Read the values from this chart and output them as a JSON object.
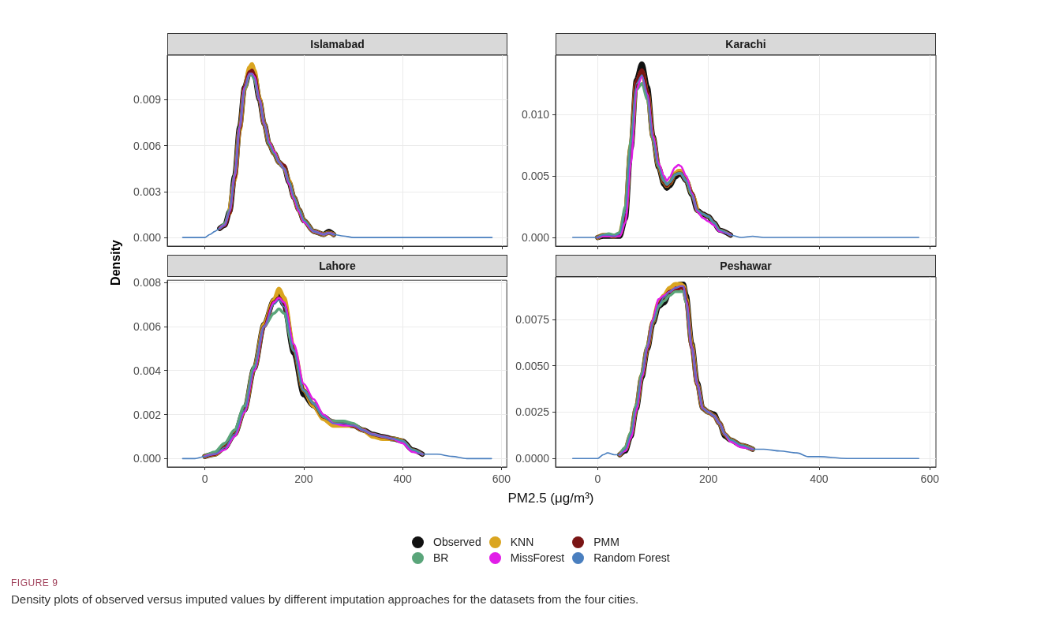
{
  "chart_data": [
    {
      "type": "line",
      "title": "Islamabad",
      "ylabel": "Density",
      "annotations": [
        "FIGURE 9",
        "Density plots of observed versus imputed values by different imputation approaches for the datasets from the four cities."
      ],
      "legend": "bottom",
      "grid": true,
      "marker": "none",
      "line_style": "solid",
      "tick_labels": "y",
      "xlim": [
        -76,
        611
      ],
      "xticks": [
        0,
        200,
        400,
        600
      ],
      "ylim": [
        -0.00056,
        0.0119
      ],
      "yticks": [
        {
          "value": 0,
          "label": "0.000"
        },
        0.003,
        0.006,
        0.009
      ],
      "x": [
        -45,
        -20,
        0,
        10,
        20,
        30,
        40,
        50,
        60,
        70,
        80,
        90,
        95,
        100,
        110,
        120,
        130,
        140,
        150,
        160,
        170,
        180,
        190,
        200,
        220,
        240,
        250,
        260,
        280,
        300,
        350,
        400,
        500,
        580
      ],
      "series": [
        {
          "name": "Observed",
          "color": "#111111",
          "values": [
            null,
            null,
            null,
            null,
            null,
            0.0006,
            0.0008,
            0.0017,
            0.004,
            0.0072,
            0.0098,
            0.0108,
            0.0109,
            0.0106,
            0.009,
            0.0074,
            0.0061,
            0.0055,
            0.0049,
            0.0046,
            0.0036,
            0.0026,
            0.0018,
            0.0011,
            0.0004,
            0.0002,
            0.0004,
            0.0002,
            null,
            null,
            null,
            null,
            null,
            null
          ]
        },
        {
          "name": "KNN",
          "color": "#daa520",
          "values": [
            null,
            null,
            null,
            null,
            null,
            null,
            null,
            0.0016,
            0.0038,
            0.007,
            0.0097,
            0.0111,
            0.0113,
            0.0109,
            0.0091,
            0.0074,
            0.0061,
            0.0055,
            0.0049,
            0.0046,
            0.0037,
            0.0026,
            0.0018,
            0.0011,
            0.0004,
            0.0002,
            0.0003,
            0.0002,
            null,
            null,
            null,
            null,
            null,
            null
          ]
        },
        {
          "name": "PMM",
          "color": "#7a1515",
          "values": [
            null,
            null,
            null,
            null,
            null,
            0.0006,
            0.0008,
            0.0016,
            0.0039,
            0.0071,
            0.0098,
            0.0108,
            0.0109,
            0.0106,
            0.009,
            0.0074,
            0.0061,
            0.0055,
            0.0049,
            0.0047,
            0.0036,
            0.0026,
            0.0018,
            0.0011,
            0.0004,
            0.0002,
            0.0003,
            0.0002,
            null,
            null,
            null,
            null,
            null,
            null
          ]
        },
        {
          "name": "BR",
          "color": "#5aa57a",
          "values": [
            null,
            null,
            null,
            null,
            null,
            0.0006,
            0.0009,
            0.0018,
            0.0041,
            0.0072,
            0.0097,
            0.0106,
            0.0106,
            0.0103,
            0.009,
            0.0074,
            0.0061,
            0.0055,
            0.0049,
            0.0045,
            0.0036,
            0.0026,
            0.0018,
            0.0011,
            0.0004,
            0.0002,
            0.0003,
            0.0002,
            null,
            null,
            null,
            null,
            null,
            null
          ]
        },
        {
          "name": "MissForest",
          "color": "#e11de8",
          "values": [
            null,
            null,
            null,
            null,
            null,
            0.0006,
            0.0008,
            0.0017,
            0.004,
            0.0072,
            0.0098,
            0.0107,
            0.0107,
            0.0105,
            0.009,
            0.0074,
            0.0062,
            0.0056,
            0.0049,
            0.0045,
            0.0035,
            0.0025,
            0.0017,
            0.001,
            0.0004,
            0.0002,
            0.0003,
            0.0002,
            null,
            null,
            null,
            null,
            null,
            null
          ]
        },
        {
          "name": "Random Forest",
          "color": "#4a7fbf",
          "values": [
            0,
            0,
            0,
            0.0002,
            0.0004,
            0.0006,
            0.0008,
            0.0017,
            0.004,
            0.0072,
            0.0098,
            0.0107,
            0.0107,
            0.0104,
            0.009,
            0.0074,
            0.0061,
            0.0055,
            0.0049,
            0.0045,
            0.0036,
            0.0026,
            0.0018,
            0.0011,
            0.0004,
            0.0002,
            0.0003,
            0.0002,
            0.0001,
            0,
            0,
            0,
            0,
            0
          ]
        }
      ]
    },
    {
      "type": "line",
      "title": "Karachi",
      "grid": true,
      "marker": "none",
      "line_style": "solid",
      "tick_labels": "y",
      "xlim": [
        -76,
        611
      ],
      "xticks": [
        0,
        200,
        400,
        600
      ],
      "ylim": [
        -0.0007,
        0.0148
      ],
      "yticks": [
        {
          "value": 0,
          "label": "0.000"
        },
        {
          "value": 0.005,
          "label": "0.005"
        },
        {
          "value": 0.01,
          "label": "0.010"
        }
      ],
      "x": [
        -45,
        -20,
        0,
        10,
        20,
        30,
        40,
        50,
        60,
        70,
        80,
        90,
        100,
        110,
        120,
        125,
        130,
        140,
        146,
        150,
        160,
        170,
        180,
        190,
        200,
        210,
        220,
        240,
        260,
        280,
        300,
        350,
        400,
        500,
        580
      ],
      "series": [
        {
          "name": "Observed",
          "color": "#111111",
          "values": [
            null,
            null,
            0,
            0.0001,
            0.0001,
            0.0001,
            0.0001,
            0.0015,
            0.0072,
            0.0128,
            0.0141,
            0.0122,
            0.0082,
            0.0057,
            0.0043,
            0.004,
            0.0042,
            0.0049,
            0.0051,
            0.0052,
            0.0046,
            0.0035,
            0.0022,
            0.0019,
            0.0017,
            0.0012,
            0.0006,
            0.0002,
            null,
            null,
            null,
            null,
            null,
            null,
            null
          ]
        },
        {
          "name": "KNN",
          "color": "#daa520",
          "values": [
            null,
            null,
            0,
            0.0002,
            0.0002,
            0.0001,
            0.0003,
            0.002,
            0.0075,
            0.0126,
            0.0135,
            0.0117,
            0.0081,
            0.0058,
            0.0045,
            0.0042,
            0.0044,
            0.0052,
            0.0054,
            0.0054,
            0.0047,
            0.0036,
            0.0022,
            null,
            null,
            null,
            null,
            null,
            null,
            null,
            null,
            null,
            null,
            null,
            null
          ]
        },
        {
          "name": "PMM",
          "color": "#7a1515",
          "values": [
            null,
            null,
            0,
            0.0002,
            0.0002,
            0.0001,
            0.0003,
            0.0018,
            0.0074,
            0.0127,
            0.0136,
            0.0118,
            0.0081,
            0.0058,
            0.0045,
            0.0042,
            0.0044,
            0.0051,
            0.0052,
            0.0052,
            0.0046,
            0.0036,
            0.0022,
            0.0019,
            0.0017,
            0.0012,
            0.0006,
            0.0002,
            null,
            null,
            null,
            null,
            null,
            null,
            null
          ]
        },
        {
          "name": "BR",
          "color": "#5aa57a",
          "values": [
            null,
            null,
            0,
            0.0002,
            0.0003,
            0.0002,
            0.0004,
            0.0025,
            0.0078,
            0.012,
            0.0125,
            0.0112,
            0.008,
            0.0058,
            0.0046,
            0.0043,
            0.0045,
            0.0051,
            0.0052,
            0.0052,
            0.0046,
            0.0035,
            0.0022,
            0.0019,
            0.0017,
            0.0012,
            0.0006,
            0.0002,
            null,
            null,
            null,
            null,
            null,
            null,
            null
          ]
        },
        {
          "name": "MissForest",
          "color": "#e11de8",
          "values": [
            null,
            null,
            0,
            0.0001,
            0.0001,
            0.0001,
            0.0001,
            0.0012,
            0.006,
            0.012,
            0.0131,
            0.0116,
            0.0082,
            0.006,
            0.005,
            0.0046,
            0.0049,
            0.0057,
            0.0059,
            0.0058,
            0.005,
            0.0036,
            0.0021,
            0.0016,
            0.0013,
            0.001,
            0.0005,
            0.0002,
            null,
            null,
            null,
            null,
            null,
            null,
            null
          ]
        },
        {
          "name": "Random Forest",
          "color": "#4a7fbf",
          "values": [
            0,
            0,
            0,
            0.0002,
            0.0002,
            0.0001,
            0.0003,
            0.002,
            0.0075,
            0.0125,
            0.0132,
            0.0115,
            0.008,
            0.0058,
            0.0046,
            0.0043,
            0.0045,
            0.0051,
            0.0052,
            0.0052,
            0.0046,
            0.0035,
            0.0022,
            0.0019,
            0.0017,
            0.0012,
            0.0006,
            0.0002,
            0,
            0.0001,
            0,
            0,
            0,
            0,
            0
          ]
        }
      ]
    },
    {
      "type": "line",
      "title": "Lahore",
      "xlabel": "PM2.5 (μg/m³)",
      "grid": true,
      "marker": "none",
      "line_style": "solid",
      "xlim": [
        -76,
        611
      ],
      "xticks": [
        0,
        200,
        400,
        600
      ],
      "ylim": [
        -0.00038,
        0.0081
      ],
      "yticks": [
        {
          "value": 0,
          "label": "0.000"
        },
        0.002,
        0.004,
        0.006,
        0.008
      ],
      "x": [
        -45,
        -20,
        0,
        20,
        40,
        60,
        80,
        100,
        120,
        140,
        150,
        160,
        180,
        200,
        220,
        240,
        260,
        280,
        300,
        320,
        340,
        360,
        380,
        400,
        420,
        440,
        470,
        500,
        530,
        580
      ],
      "series": [
        {
          "name": "Observed",
          "color": "#111111",
          "values": [
            null,
            null,
            0.0001,
            0.0002,
            0.0005,
            0.0011,
            0.0022,
            0.0041,
            0.0061,
            0.0072,
            0.0074,
            0.007,
            0.0048,
            0.0029,
            0.0024,
            0.0019,
            0.0016,
            0.0016,
            0.0015,
            0.0013,
            0.0011,
            0.001,
            0.0009,
            0.0008,
            0.0004,
            0.0002,
            null,
            null,
            null,
            null
          ]
        },
        {
          "name": "KNN",
          "color": "#daa520",
          "values": [
            null,
            null,
            0.0001,
            0.0002,
            0.0005,
            0.0011,
            0.0022,
            0.0041,
            0.0061,
            0.0072,
            0.0077,
            0.0073,
            0.005,
            0.0031,
            0.0024,
            0.0018,
            0.0015,
            0.0015,
            0.0015,
            0.0013,
            0.001,
            0.0009,
            0.0009,
            0.0008,
            null,
            null,
            null,
            null,
            null,
            null
          ]
        },
        {
          "name": "PMM",
          "color": "#7a1515",
          "values": [
            null,
            null,
            0.0001,
            0.0002,
            0.0005,
            0.0011,
            0.0022,
            0.0041,
            0.006,
            0.0071,
            0.0073,
            0.007,
            0.0049,
            0.0031,
            0.0025,
            0.0019,
            0.0017,
            0.0016,
            0.0015,
            0.0013,
            0.0011,
            0.001,
            0.0009,
            0.0008,
            0.0004,
            0.0002,
            null,
            null,
            null,
            null
          ]
        },
        {
          "name": "BR",
          "color": "#5aa57a",
          "values": [
            null,
            null,
            0.0001,
            0.0003,
            0.0007,
            0.0013,
            0.0024,
            0.0042,
            0.006,
            0.0066,
            0.0068,
            0.0066,
            0.0049,
            0.0031,
            0.0025,
            0.0019,
            0.0017,
            0.0017,
            0.0016,
            0.0013,
            0.0011,
            0.001,
            0.0009,
            0.0008,
            0.0004,
            0.0002,
            null,
            null,
            null,
            null
          ]
        },
        {
          "name": "MissForest",
          "color": "#e11de8",
          "values": [
            null,
            null,
            0.0001,
            0.0002,
            0.0004,
            0.001,
            0.0021,
            0.004,
            0.006,
            0.0071,
            0.0073,
            0.0071,
            0.0052,
            0.0034,
            0.0027,
            0.002,
            0.0016,
            0.0015,
            0.0015,
            0.0013,
            0.0011,
            0.001,
            0.0009,
            0.0007,
            0.0003,
            0.0002,
            null,
            null,
            null,
            null
          ]
        },
        {
          "name": "Random Forest",
          "color": "#4a7fbf",
          "values": [
            0,
            0,
            0.0001,
            0.0002,
            0.0005,
            0.0011,
            0.0022,
            0.0041,
            0.006,
            0.007,
            0.0072,
            0.0069,
            0.0049,
            0.0031,
            0.0025,
            0.0019,
            0.0016,
            0.0016,
            0.0015,
            0.0013,
            0.0011,
            0.001,
            0.0009,
            0.0008,
            0.0004,
            0.0002,
            0.0002,
            0.0001,
            0,
            0
          ]
        }
      ]
    },
    {
      "type": "line",
      "title": "Peshawar",
      "grid": true,
      "marker": "none",
      "line_style": "solid",
      "xlim": [
        -76,
        611
      ],
      "xticks": [
        0,
        200,
        400,
        600
      ],
      "ylim": [
        -0.00046,
        0.0098
      ],
      "yticks": [
        {
          "value": 0,
          "label": "0.0000"
        },
        {
          "value": 0.0025,
          "label": "0.0025"
        },
        {
          "value": 0.005,
          "label": "0.0050"
        },
        {
          "value": 0.0075,
          "label": "0.0075"
        }
      ],
      "x": [
        -45,
        -20,
        0,
        10,
        18,
        30,
        40,
        50,
        60,
        70,
        80,
        90,
        100,
        110,
        120,
        130,
        140,
        150,
        155,
        160,
        170,
        180,
        190,
        200,
        210,
        220,
        230,
        240,
        260,
        280,
        300,
        330,
        360,
        380,
        400,
        450,
        500,
        580
      ],
      "series": [
        {
          "name": "Observed",
          "color": "#111111",
          "values": [
            null,
            null,
            null,
            null,
            null,
            null,
            0.0002,
            0.0004,
            0.0012,
            0.0027,
            0.0044,
            0.0059,
            0.0073,
            0.0082,
            0.0084,
            0.009,
            0.0093,
            0.0094,
            0.0094,
            0.0088,
            0.0062,
            0.0041,
            0.0027,
            0.0025,
            0.0024,
            0.0019,
            0.0012,
            0.001,
            0.0007,
            0.0005,
            null,
            null,
            null,
            null,
            null,
            null,
            null,
            null
          ]
        },
        {
          "name": "KNN",
          "color": "#daa520",
          "values": [
            null,
            null,
            null,
            null,
            null,
            null,
            0.0002,
            0.0005,
            0.0013,
            0.0028,
            0.0045,
            0.006,
            0.0074,
            0.0084,
            0.0088,
            0.0092,
            0.0094,
            0.0094,
            0.0093,
            0.0086,
            0.0061,
            0.004,
            0.0027,
            0.0025,
            0.0023,
            0.0019,
            0.0013,
            0.001,
            0.0007,
            0.0005,
            null,
            null,
            null,
            null,
            null,
            null,
            null,
            null
          ]
        },
        {
          "name": "PMM",
          "color": "#7a1515",
          "values": [
            null,
            null,
            null,
            null,
            null,
            null,
            0.0002,
            0.0005,
            0.0013,
            0.0028,
            0.0045,
            0.006,
            0.0074,
            0.0083,
            0.0087,
            0.009,
            0.0091,
            0.0092,
            0.0092,
            0.0085,
            0.006,
            0.004,
            0.0027,
            0.0025,
            0.0023,
            0.0019,
            0.0013,
            0.001,
            0.0007,
            0.0005,
            null,
            null,
            null,
            null,
            null,
            null,
            null,
            null
          ]
        },
        {
          "name": "BR",
          "color": "#5aa57a",
          "values": [
            null,
            null,
            null,
            null,
            null,
            null,
            0.0002,
            0.0006,
            0.0014,
            0.0029,
            0.0046,
            0.0061,
            0.0074,
            0.0082,
            0.0085,
            0.0088,
            0.009,
            0.009,
            0.009,
            0.0084,
            0.006,
            0.004,
            0.0027,
            0.0025,
            0.0023,
            0.0019,
            0.0013,
            0.001,
            0.0007,
            0.0005,
            null,
            null,
            null,
            null,
            null,
            null,
            null,
            null
          ]
        },
        {
          "name": "MissForest",
          "color": "#e11de8",
          "values": [
            null,
            null,
            null,
            null,
            null,
            null,
            0.0002,
            0.0004,
            0.0011,
            0.0026,
            0.0044,
            0.006,
            0.0075,
            0.0086,
            0.0088,
            0.009,
            0.0092,
            0.0093,
            0.0093,
            0.0085,
            0.006,
            0.004,
            0.0027,
            0.0025,
            0.0023,
            0.0019,
            0.0013,
            0.0009,
            0.0006,
            0.0005,
            null,
            null,
            null,
            null,
            null,
            null,
            null,
            null
          ]
        },
        {
          "name": "Random Forest",
          "color": "#4a7fbf",
          "values": [
            0,
            0,
            0,
            0.0002,
            0.0003,
            0.0002,
            0.0002,
            0.0005,
            0.0013,
            0.0028,
            0.0045,
            0.006,
            0.0074,
            0.0083,
            0.0087,
            0.009,
            0.0092,
            0.0093,
            0.0093,
            0.0085,
            0.006,
            0.004,
            0.0027,
            0.0025,
            0.0023,
            0.0019,
            0.0013,
            0.001,
            0.0007,
            0.0005,
            0.0005,
            0.0004,
            0.0003,
            0.0001,
            0.0001,
            0,
            0,
            0
          ]
        }
      ]
    }
  ]
}
